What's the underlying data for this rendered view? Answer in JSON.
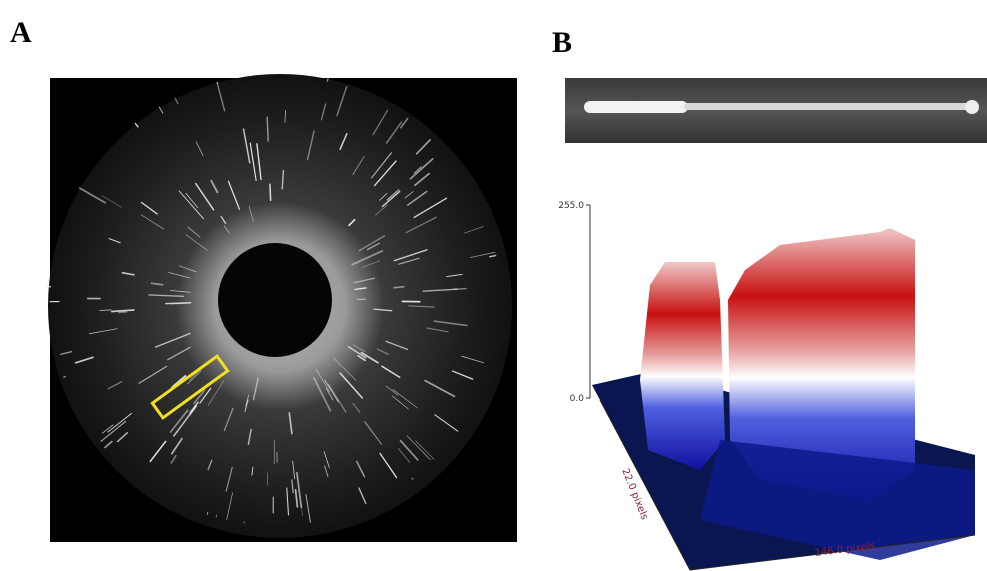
{
  "panel_a": {
    "label": "A"
  },
  "panel_b": {
    "label": "B",
    "surface_plot": {
      "z_max_label": "255.0",
      "z_min_label": "0.0",
      "y_axis_label": "22.0 pixels",
      "x_axis_label": "146.0 pixels"
    }
  }
}
